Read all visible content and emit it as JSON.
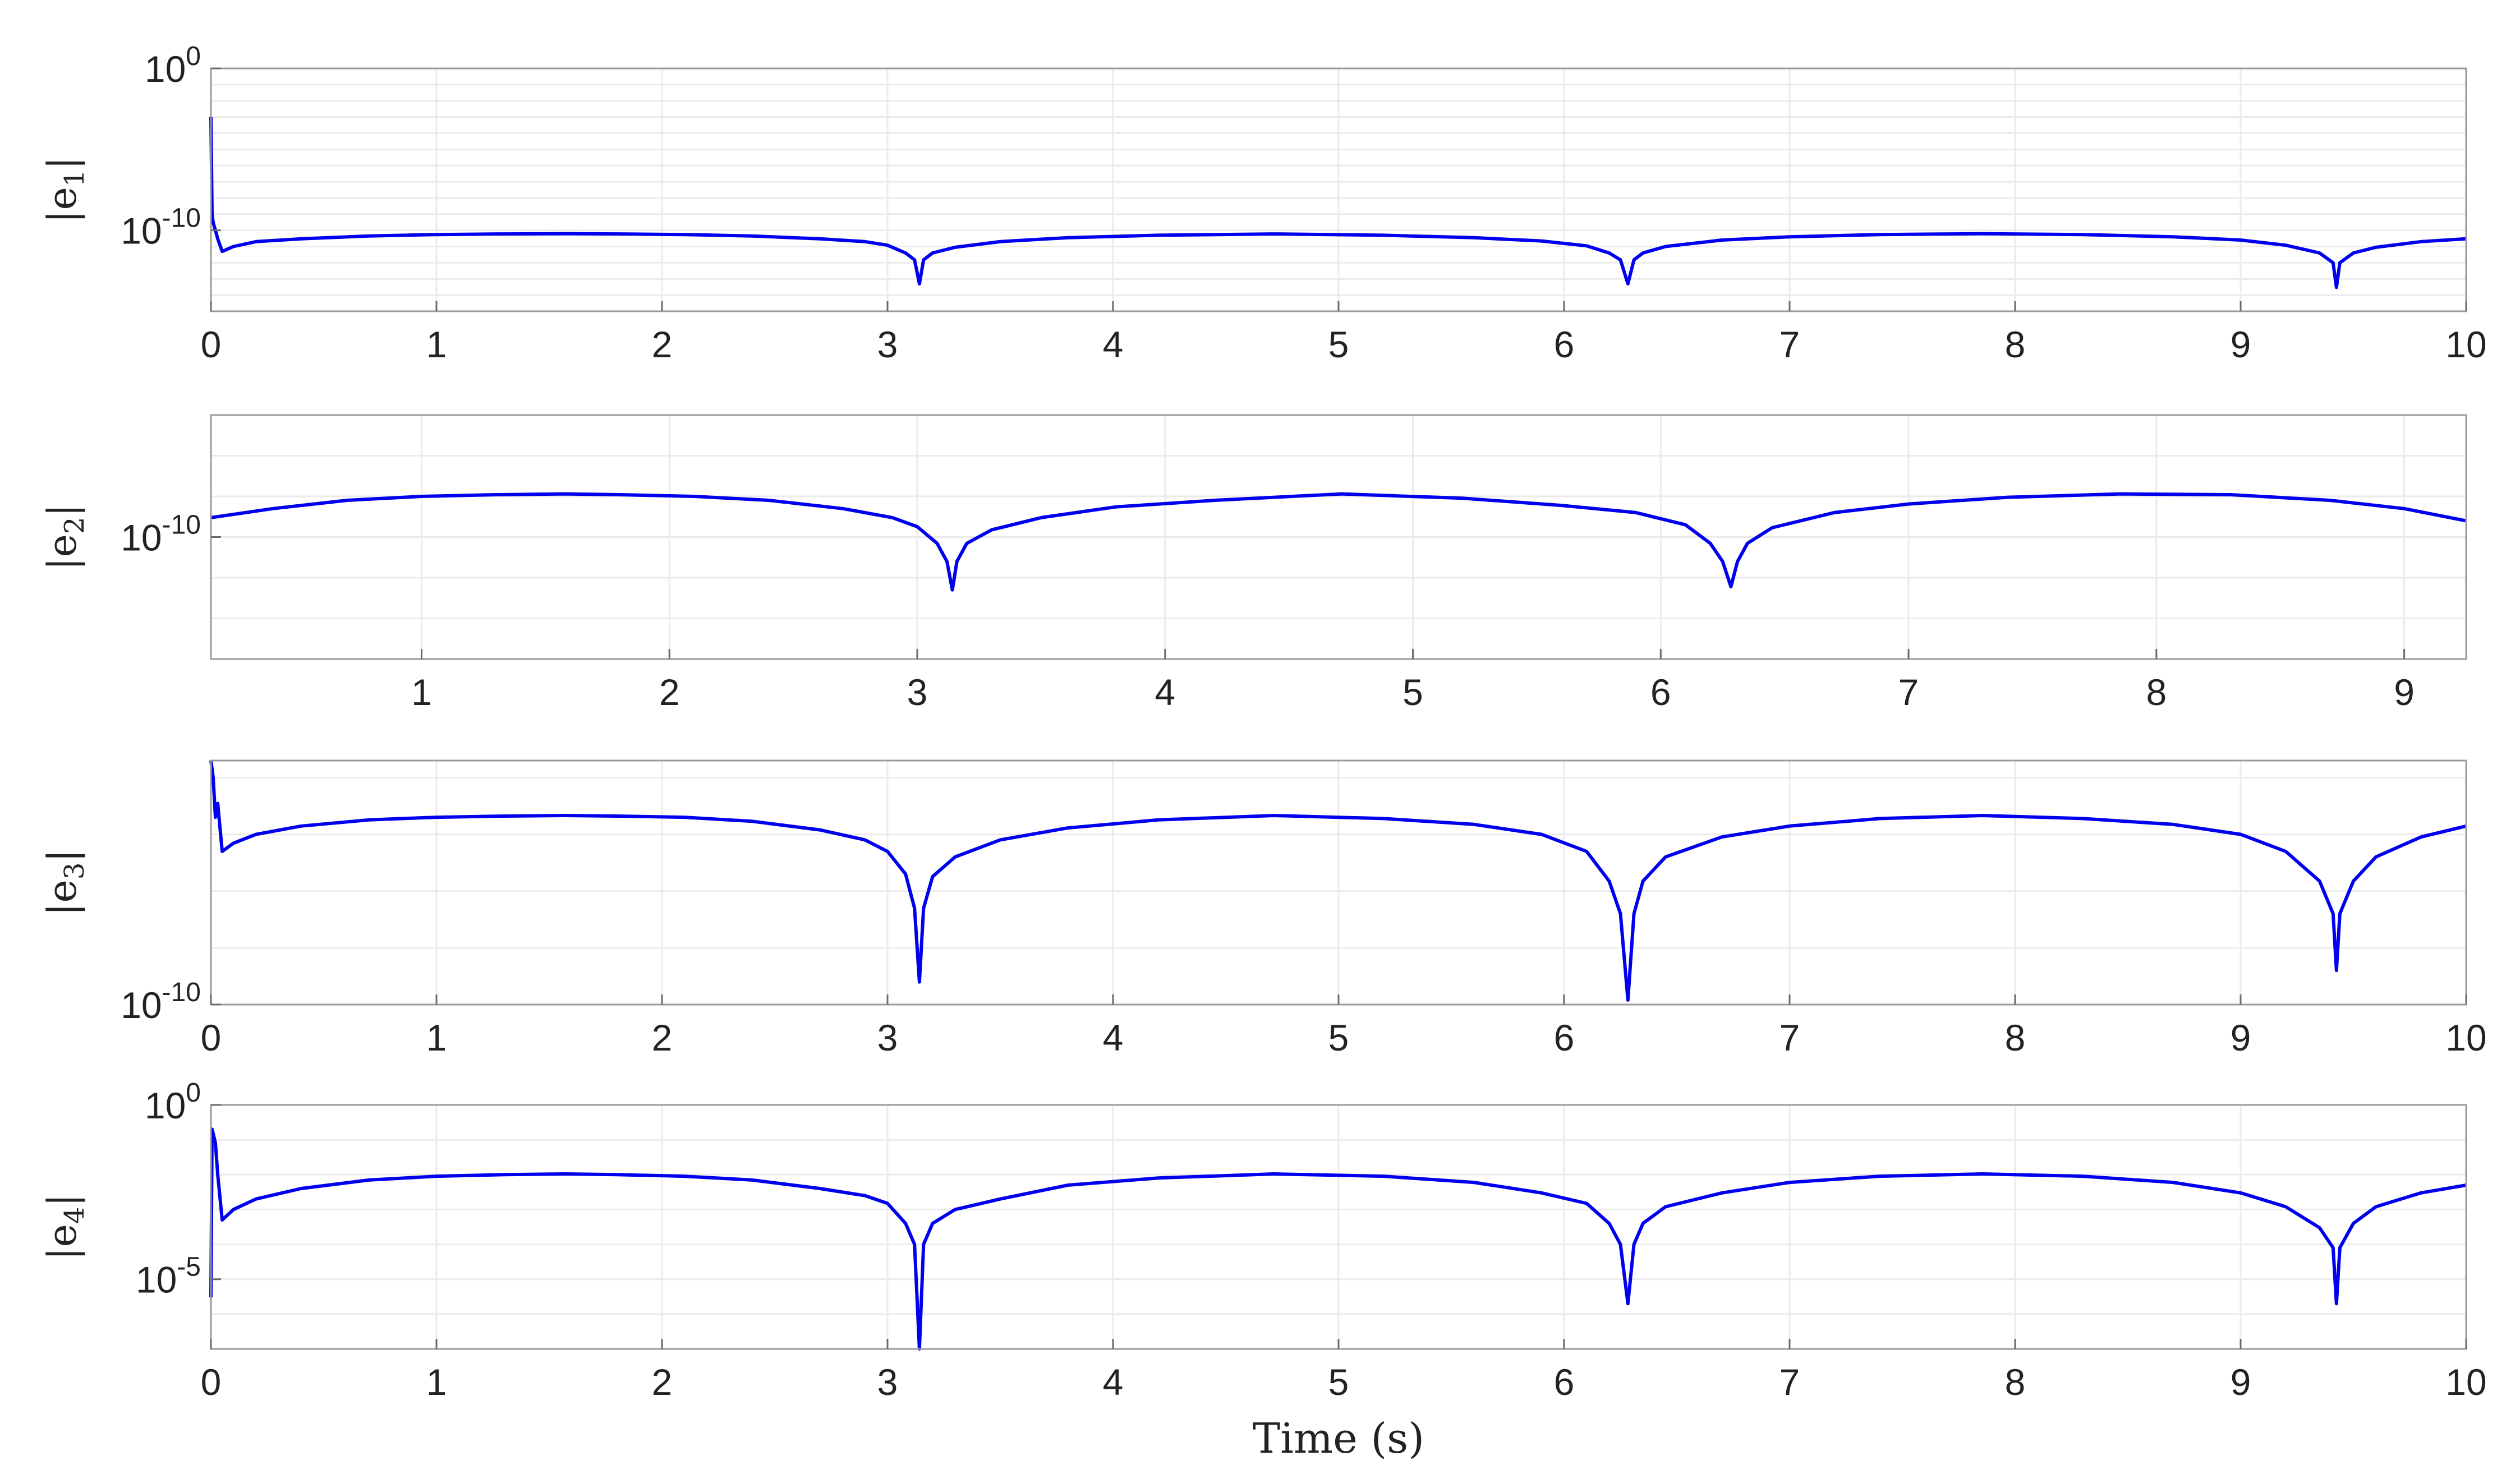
{
  "chart_data": [
    {
      "type": "line",
      "ylabel": "|e1|",
      "ylabel_parts": {
        "sym": "e",
        "sub": "1"
      },
      "yscale": "log",
      "ylim": [
        1e-15,
        1
      ],
      "xlim": [
        0,
        10
      ],
      "xticks": [
        "0",
        "1",
        "2",
        "3",
        "4",
        "5",
        "6",
        "7",
        "8",
        "9",
        "10"
      ],
      "yticks": [
        {
          "base": "10",
          "exp": "0",
          "value": 1
        },
        {
          "base": "10",
          "exp": "-10",
          "value": 1e-10
        }
      ],
      "grid": true,
      "series": [
        {
          "color": "#0000ee",
          "x": [
            0,
            0.005,
            0.01,
            0.02,
            0.03,
            0.05,
            0.1,
            0.2,
            0.4,
            0.7,
            1.0,
            1.3,
            1.5708,
            1.8,
            2.1,
            2.4,
            2.7,
            2.9,
            3.0,
            3.08,
            3.12,
            3.1416,
            3.16,
            3.2,
            3.3,
            3.5,
            3.8,
            4.2,
            4.7124,
            5.2,
            5.6,
            5.9,
            6.1,
            6.2,
            6.25,
            6.2832,
            6.31,
            6.35,
            6.45,
            6.7,
            7.0,
            7.4,
            7.854,
            8.3,
            8.7,
            9.0,
            9.2,
            9.35,
            9.41,
            9.4248,
            9.44,
            9.5,
            9.6,
            9.8,
            10.0
          ],
          "y": [
            0.001,
            1e-09,
            3e-10,
            1e-10,
            3e-11,
            5e-12,
            1e-11,
            2e-11,
            3e-11,
            4.5e-11,
            5.5e-11,
            6e-11,
            6.2e-11,
            6e-11,
            5.5e-11,
            4.5e-11,
            3e-11,
            2e-11,
            1.2e-11,
            4e-12,
            1.5e-12,
            5e-14,
            1.5e-12,
            4e-12,
            9e-12,
            2e-11,
            3.5e-11,
            5e-11,
            6e-11,
            5e-11,
            3.5e-11,
            2.2e-11,
            1.1e-11,
            4e-12,
            1.5e-12,
            5e-14,
            1.5e-12,
            4e-12,
            1e-11,
            2.5e-11,
            4e-11,
            5.5e-11,
            6.2e-11,
            5.5e-11,
            4e-11,
            2.5e-11,
            1.2e-11,
            4e-12,
            1e-12,
            3e-14,
            1e-12,
            4e-12,
            9e-12,
            2e-11,
            3e-11
          ]
        }
      ]
    },
    {
      "type": "line",
      "ylabel": "|e2|",
      "ylabel_parts": {
        "sym": "e",
        "sub": "2"
      },
      "yscale": "log",
      "ylim": [
        1e-13,
        1e-07
      ],
      "xlim": [
        0.15,
        9.25
      ],
      "xticks": [
        "1",
        "2",
        "3",
        "4",
        "5",
        "6",
        "7",
        "8",
        "9"
      ],
      "yticks": [
        {
          "base": "10",
          "exp": "-10",
          "value": 1e-10
        }
      ],
      "grid": true,
      "series": [
        {
          "color": "#0000ee",
          "x": [
            0.15,
            0.4,
            0.7,
            1.0,
            1.3,
            1.5708,
            1.8,
            2.1,
            2.4,
            2.7,
            2.9,
            3.0,
            3.08,
            3.12,
            3.1416,
            3.16,
            3.2,
            3.3,
            3.5,
            3.8,
            4.2,
            4.7124,
            5.2,
            5.6,
            5.9,
            6.1,
            6.2,
            6.25,
            6.2832,
            6.31,
            6.35,
            6.45,
            6.7,
            7.0,
            7.4,
            7.854,
            8.3,
            8.7,
            9.0,
            9.25
          ],
          "y": [
            3e-10,
            5e-10,
            8e-10,
            1e-09,
            1.1e-09,
            1.15e-09,
            1.1e-09,
            1e-09,
            8e-10,
            5e-10,
            3e-10,
            1.8e-10,
            7e-11,
            2.5e-11,
            5e-12,
            2.5e-11,
            7e-11,
            1.5e-10,
            3e-10,
            5.5e-10,
            8e-10,
            1.15e-09,
            9e-10,
            6e-10,
            4e-10,
            2e-10,
            7e-11,
            2.5e-11,
            6e-12,
            2.5e-11,
            7e-11,
            1.7e-10,
            4e-10,
            6.5e-10,
            9.5e-10,
            1.15e-09,
            1.1e-09,
            8e-10,
            5e-10,
            2.5e-10
          ]
        }
      ]
    },
    {
      "type": "line",
      "ylabel": "|e3|",
      "ylabel_parts": {
        "sym": "e",
        "sub": "3"
      },
      "yscale": "log",
      "ylim": [
        1e-10,
        2e-06
      ],
      "xlim": [
        0,
        10
      ],
      "xticks": [
        "0",
        "1",
        "2",
        "3",
        "4",
        "5",
        "6",
        "7",
        "8",
        "9",
        "10"
      ],
      "yticks": [
        {
          "base": "10",
          "exp": "-10",
          "value": 1e-10
        }
      ],
      "grid": true,
      "series": [
        {
          "color": "#0000ee",
          "x": [
            0,
            0.01,
            0.02,
            0.03,
            0.05,
            0.1,
            0.2,
            0.4,
            0.7,
            1.0,
            1.3,
            1.5708,
            1.8,
            2.1,
            2.4,
            2.7,
            2.9,
            3.0,
            3.08,
            3.12,
            3.1416,
            3.16,
            3.2,
            3.3,
            3.5,
            3.8,
            4.2,
            4.7124,
            5.2,
            5.6,
            5.9,
            6.1,
            6.2,
            6.25,
            6.2832,
            6.31,
            6.35,
            6.45,
            6.7,
            7.0,
            7.4,
            7.854,
            8.3,
            8.7,
            9.0,
            9.2,
            9.35,
            9.41,
            9.4248,
            9.44,
            9.5,
            9.6,
            9.8,
            10.0
          ],
          "y": [
            2e-06,
            1e-06,
            2e-07,
            3.5e-07,
            5e-08,
            7e-08,
            1e-07,
            1.4e-07,
            1.8e-07,
            2e-07,
            2.1e-07,
            2.15e-07,
            2.1e-07,
            2e-07,
            1.7e-07,
            1.2e-07,
            8e-08,
            5e-08,
            2e-08,
            5e-09,
            2.5e-10,
            5e-09,
            1.8e-08,
            4e-08,
            8e-08,
            1.3e-07,
            1.8e-07,
            2.15e-07,
            1.9e-07,
            1.5e-07,
            1e-07,
            5e-08,
            1.5e-08,
            4e-09,
            1.2e-10,
            4e-09,
            1.5e-08,
            4e-08,
            9e-08,
            1.4e-07,
            1.9e-07,
            2.15e-07,
            1.9e-07,
            1.5e-07,
            1e-07,
            5e-08,
            1.5e-08,
            4e-09,
            4e-10,
            4e-09,
            1.5e-08,
            4e-08,
            9e-08,
            1.4e-07
          ]
        }
      ]
    },
    {
      "type": "line",
      "ylabel": "|e4|",
      "ylabel_parts": {
        "sym": "e",
        "sub": "4"
      },
      "yscale": "log",
      "ylim": [
        1e-07,
        1
      ],
      "xlim": [
        0,
        10
      ],
      "xticks": [
        "0",
        "1",
        "2",
        "3",
        "4",
        "5",
        "6",
        "7",
        "8",
        "9",
        "10"
      ],
      "yticks": [
        {
          "base": "10",
          "exp": "0",
          "value": 1
        },
        {
          "base": "10",
          "exp": "-5",
          "value": 1e-05
        }
      ],
      "grid": true,
      "series": [
        {
          "color": "#0000ee",
          "x": [
            0,
            0.005,
            0.01,
            0.02,
            0.03,
            0.05,
            0.1,
            0.2,
            0.4,
            0.7,
            1.0,
            1.3,
            1.5708,
            1.8,
            2.1,
            2.4,
            2.7,
            2.9,
            3.0,
            3.08,
            3.12,
            3.1416,
            3.16,
            3.2,
            3.3,
            3.5,
            3.8,
            4.2,
            4.7124,
            5.2,
            5.6,
            5.9,
            6.1,
            6.2,
            6.25,
            6.2832,
            6.31,
            6.35,
            6.45,
            6.7,
            7.0,
            7.4,
            7.854,
            8.3,
            8.7,
            9.0,
            9.2,
            9.35,
            9.41,
            9.4248,
            9.44,
            9.5,
            9.6,
            9.8,
            10.0
          ],
          "y": [
            3e-06,
            0.2,
            0.15,
            0.08,
            0.01,
            0.0005,
            0.001,
            0.002,
            0.004,
            0.007,
            0.009,
            0.01,
            0.0105,
            0.01,
            0.009,
            0.007,
            0.004,
            0.0025,
            0.0015,
            0.0004,
            0.0001,
            1e-07,
            0.0001,
            0.0004,
            0.001,
            0.002,
            0.005,
            0.008,
            0.0105,
            0.009,
            0.006,
            0.003,
            0.0015,
            0.0004,
            0.0001,
            2e-06,
            0.0001,
            0.0004,
            0.0012,
            0.003,
            0.006,
            0.009,
            0.0105,
            0.009,
            0.006,
            0.003,
            0.0012,
            0.0003,
            8e-05,
            2e-06,
            8e-05,
            0.0004,
            0.0012,
            0.003,
            0.005
          ]
        }
      ],
      "xlabel": "Time (s)"
    }
  ]
}
